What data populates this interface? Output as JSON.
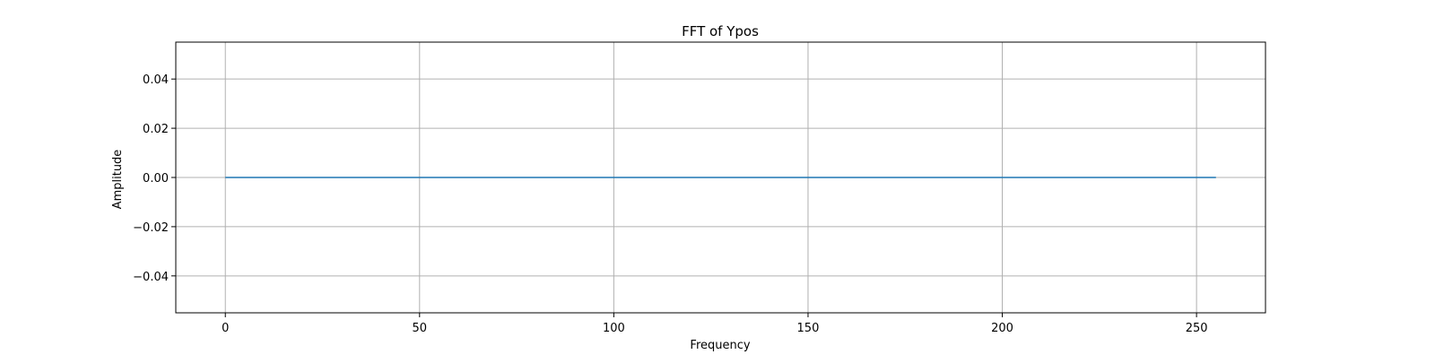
{
  "chart_data": {
    "type": "line",
    "title": "FFT of Ypos",
    "xlabel": "Frequency",
    "ylabel": "Amplitude",
    "xlim": [
      -12.75,
      267.75
    ],
    "ylim": [
      -0.055,
      0.055
    ],
    "x_ticks": [
      0,
      50,
      100,
      150,
      200,
      250
    ],
    "y_ticks": [
      -0.04,
      -0.02,
      0.0,
      0.02,
      0.04
    ],
    "x_tick_labels": [
      "0",
      "50",
      "100",
      "150",
      "200",
      "250"
    ],
    "y_tick_labels": [
      "−0.04",
      "−0.02",
      "0.00",
      "0.02",
      "0.04"
    ],
    "grid": true,
    "series": [
      {
        "color": "#1f77b4",
        "x": [
          0,
          255
        ],
        "y": [
          0.0,
          0.0
        ]
      }
    ]
  }
}
